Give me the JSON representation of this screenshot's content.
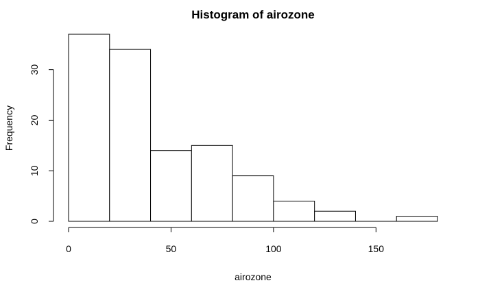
{
  "chart_data": {
    "type": "bar",
    "title": "Histogram of airozone",
    "xlabel": "airozone",
    "ylabel": "Frequency",
    "bins": [
      {
        "start": 0,
        "end": 20,
        "count": 37
      },
      {
        "start": 20,
        "end": 40,
        "count": 34
      },
      {
        "start": 40,
        "end": 60,
        "count": 14
      },
      {
        "start": 60,
        "end": 80,
        "count": 15
      },
      {
        "start": 80,
        "end": 100,
        "count": 9
      },
      {
        "start": 100,
        "end": 120,
        "count": 4
      },
      {
        "start": 120,
        "end": 140,
        "count": 2
      },
      {
        "start": 140,
        "end": 160,
        "count": 0
      },
      {
        "start": 160,
        "end": 180,
        "count": 1
      }
    ],
    "xlim": [
      0,
      180
    ],
    "ylim": [
      0,
      37
    ],
    "xticks": [
      0,
      50,
      100,
      150
    ],
    "yticks": [
      0,
      10,
      20,
      30
    ],
    "grid": false,
    "colors": {
      "bar_fill": "#ffffff",
      "bar_stroke": "#000000"
    }
  }
}
